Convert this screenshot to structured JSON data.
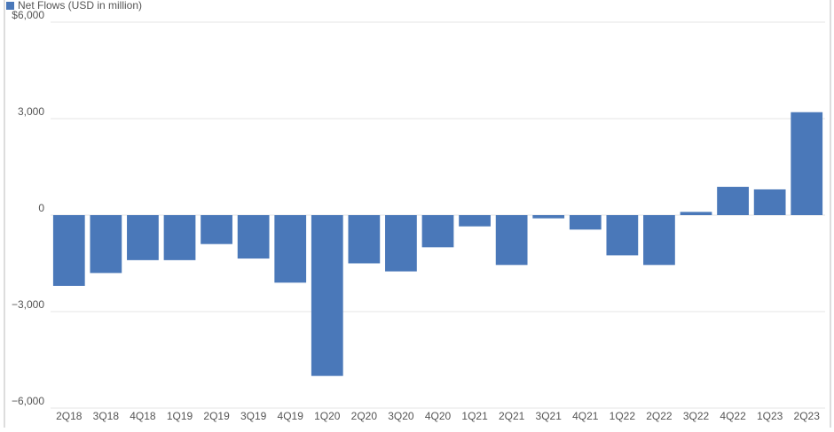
{
  "chart_data": {
    "type": "bar",
    "legend": "Net Flows (USD in million)",
    "color": "#4a78b9",
    "categories": [
      "2Q18",
      "3Q18",
      "4Q18",
      "1Q19",
      "2Q19",
      "3Q19",
      "4Q19",
      "1Q20",
      "2Q20",
      "3Q20",
      "4Q20",
      "1Q21",
      "2Q21",
      "3Q21",
      "4Q21",
      "1Q22",
      "2Q22",
      "3Q22",
      "4Q22",
      "1Q23",
      "2Q23"
    ],
    "values": [
      -2200,
      -1800,
      -1400,
      -1400,
      -900,
      -1350,
      -2100,
      -5000,
      -1500,
      -1750,
      -1000,
      -350,
      -1550,
      -100,
      -450,
      -1250,
      -1550,
      100,
      880,
      800,
      3200
    ],
    "ylim": [
      -6000,
      6000
    ],
    "yticks": [
      {
        "value": -6000,
        "label": "−6,000"
      },
      {
        "value": -3000,
        "label": "−3,000"
      },
      0,
      {
        "value": 3000,
        "label": "3,000"
      },
      {
        "value": 6000,
        "label": "$6,000"
      }
    ],
    "grid": true
  }
}
